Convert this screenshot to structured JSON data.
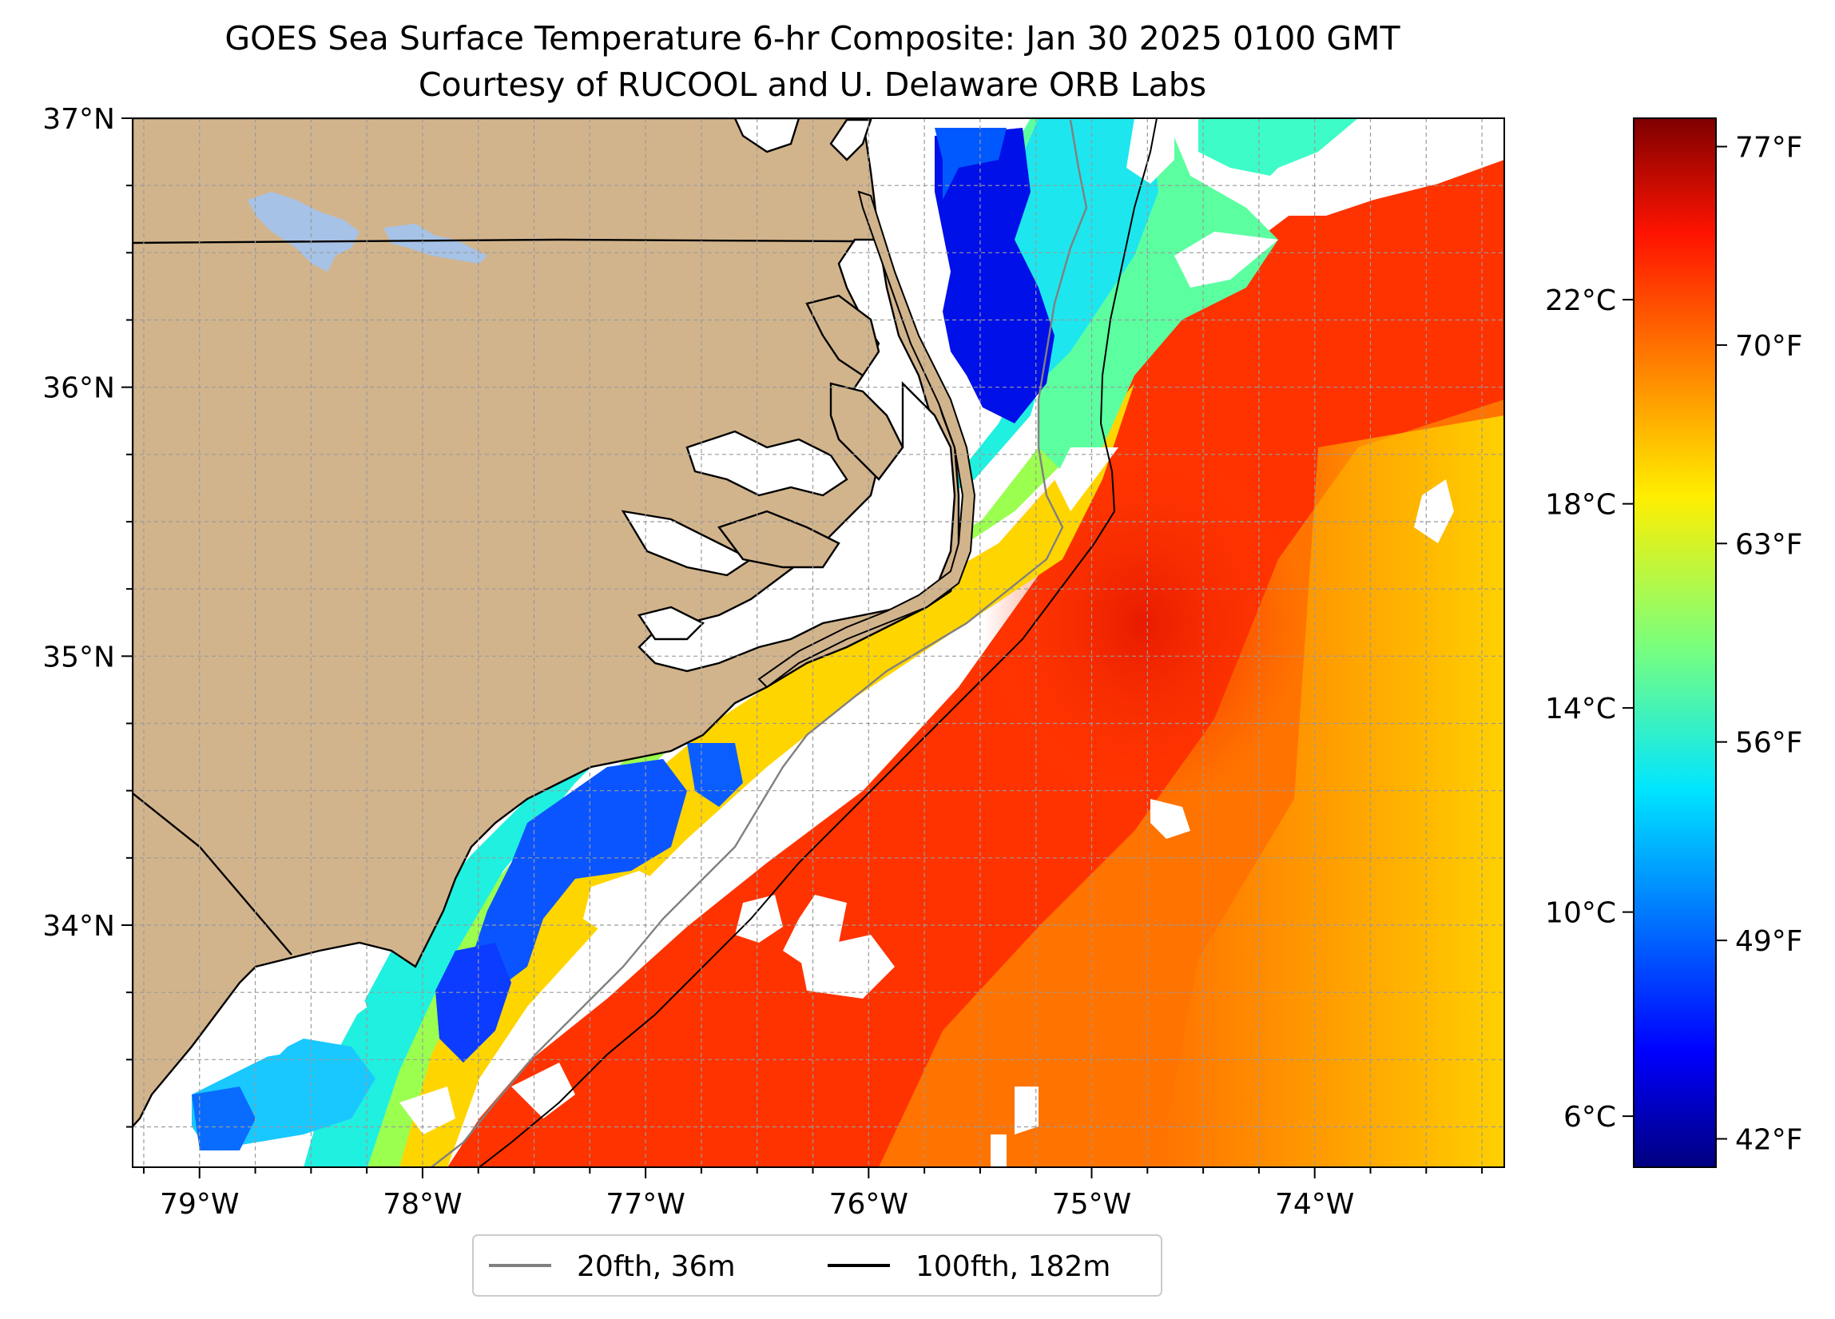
{
  "title": {
    "line1": "GOES Sea Surface Temperature 6-hr Composite: Jan 30 2025 0100 GMT",
    "line2": "Courtesy of RUCOOL and U. Delaware ORB Labs"
  },
  "map": {
    "lat_labels": [
      "37°N",
      "36°N",
      "35°N",
      "34°N"
    ],
    "lon_labels": [
      "79°W",
      "78°W",
      "77°W",
      "76°W",
      "75°W",
      "74°W"
    ],
    "lat_values": [
      37,
      36,
      35,
      34
    ],
    "lon_values": [
      -79,
      -78,
      -77,
      -76,
      -75,
      -74
    ],
    "lat_range": [
      33.1,
      37.0
    ],
    "lon_range": [
      -79.3,
      -73.15
    ],
    "colors": {
      "land": "#d2b48c",
      "lake": "#a6c2e6",
      "cloud": "#ffffff",
      "grid": "#9a9a9a"
    }
  },
  "colorbar": {
    "left_labels": [
      "22°C",
      "18°C",
      "14°C",
      "10°C",
      "6°C"
    ],
    "left_values_c": [
      22,
      18,
      14,
      10,
      6
    ],
    "right_labels": [
      "77°F",
      "70°F",
      "63°F",
      "56°F",
      "49°F",
      "42°F"
    ],
    "right_values_f": [
      77,
      70,
      63,
      56,
      49,
      42
    ],
    "range_f": [
      41,
      78
    ],
    "colormap": "jet"
  },
  "legend": {
    "items": [
      {
        "label": "20fth, 36m",
        "color": "#808080"
      },
      {
        "label": "100fth, 182m",
        "color": "#000000"
      }
    ]
  }
}
